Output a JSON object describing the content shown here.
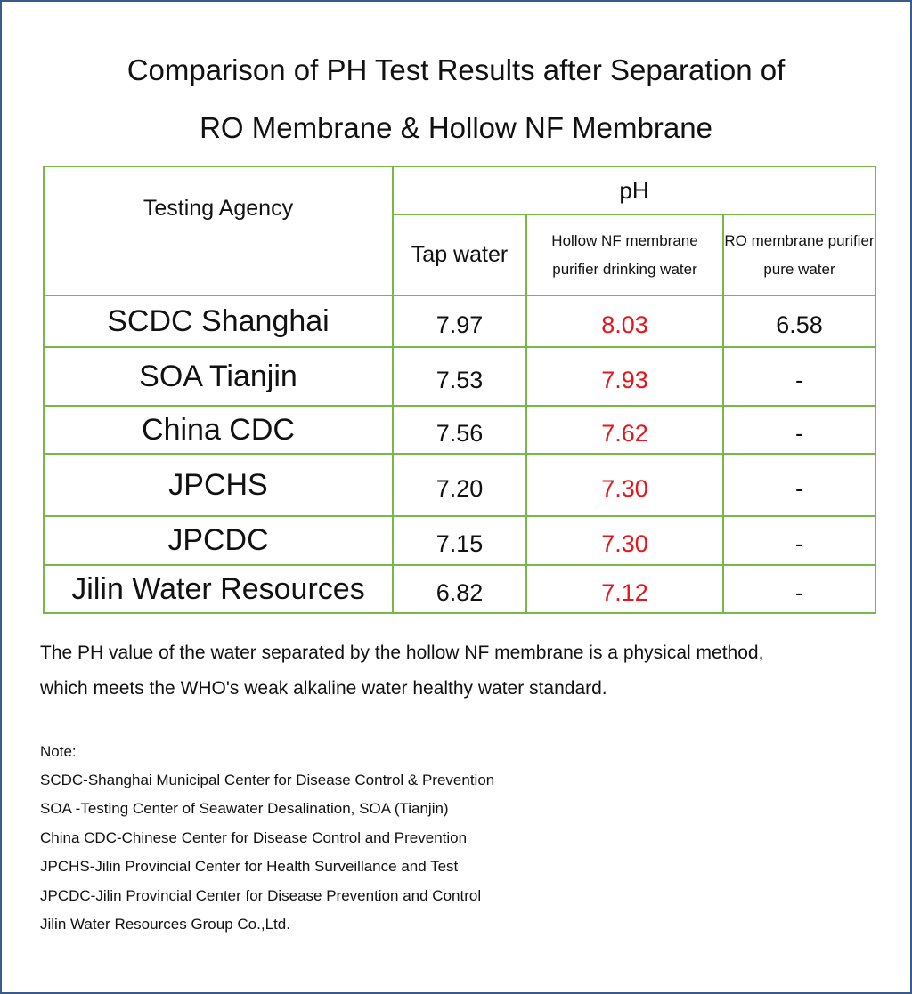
{
  "header": {
    "title": [
      "Comparison of PH Test Results after Separation of",
      "RO Membrane & Hollow NF Membrane"
    ]
  },
  "table": {
    "corner": "Testing Agency",
    "group": "pH",
    "columns": [
      "Tap water",
      "Hollow NF membrane purifier drinking water",
      "RO membrane purifier pure water"
    ],
    "rows": [
      [
        "SCDC Shanghai",
        "7.97",
        "8.03",
        "6.58"
      ],
      [
        "SOA Tianjin",
        "7.53",
        "7.93",
        "-"
      ],
      [
        "China CDC",
        "7.56",
        "7.62",
        "-"
      ],
      [
        "JPCHS",
        "7.20",
        "7.30",
        "-"
      ],
      [
        "JPCDC",
        "7.15",
        "7.30",
        "-"
      ],
      [
        "Jilin Water Resources",
        "6.82",
        "7.12",
        "-"
      ]
    ]
  },
  "description": [
    "The PH value of the water separated by the hollow NF membrane is a physical method,",
    "which meets the WHO's weak alkaline water healthy water standard."
  ],
  "notes": {
    "heading": "Note:",
    "items": [
      "SCDC-Shanghai Municipal Center for Disease Control & Prevention",
      "SOA -Testing Center of Seawater Desalination, SOA (Tianjin)",
      "China CDC-Chinese Center for Disease Control and Prevention",
      "JPCHS-Jilin Provincial Center for Health Surveillance and Test",
      "JPCDC-Jilin Provincial Center for Disease Prevention and Control",
      "Jilin Water Resources Group Co.,Ltd."
    ]
  }
}
